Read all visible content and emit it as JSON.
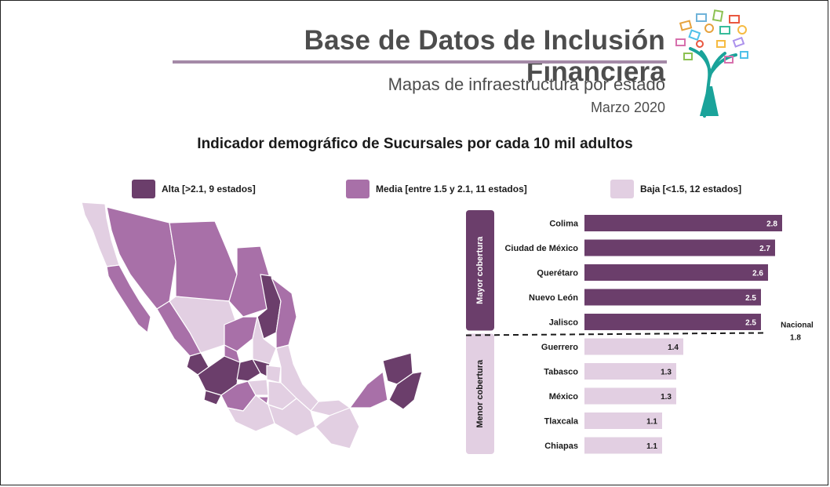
{
  "header": {
    "title": "Base de Datos de Inclusión Financiera",
    "subtitle": "Mapas de infraestructura por estado",
    "date": "Marzo 2020"
  },
  "chart_data": {
    "type": "bar",
    "orientation": "horizontal",
    "title": "Indicador demográfico de Sucursales por cada 10 mil adultos",
    "legend": [
      {
        "label": "Alta [>2.1, 9 estados]",
        "color": "#6b3e6b"
      },
      {
        "label": "Media [entre 1.5 y 2.1, 11 estados]",
        "color": "#a870a8"
      },
      {
        "label": "Baja [<1.5, 12 estados]",
        "color": "#e2cfe2"
      }
    ],
    "groups": [
      {
        "label": "Mayor cobertura",
        "color": "#6b3e6b",
        "categories": [
          "Colima",
          "Ciudad de México",
          "Querétaro",
          "Nuevo León",
          "Jalisco"
        ],
        "values": [
          2.8,
          2.7,
          2.6,
          2.5,
          2.5
        ]
      },
      {
        "label": "Menor cobertura",
        "color": "#e2cfe2",
        "categories": [
          "Guerrero",
          "Tabasco",
          "México",
          "Tlaxcala",
          "Chiapas"
        ],
        "values": [
          1.4,
          1.3,
          1.3,
          1.1,
          1.1
        ]
      }
    ],
    "reference": {
      "label": "Nacional",
      "value": 1.8
    },
    "xlim": [
      0,
      2.8
    ]
  }
}
